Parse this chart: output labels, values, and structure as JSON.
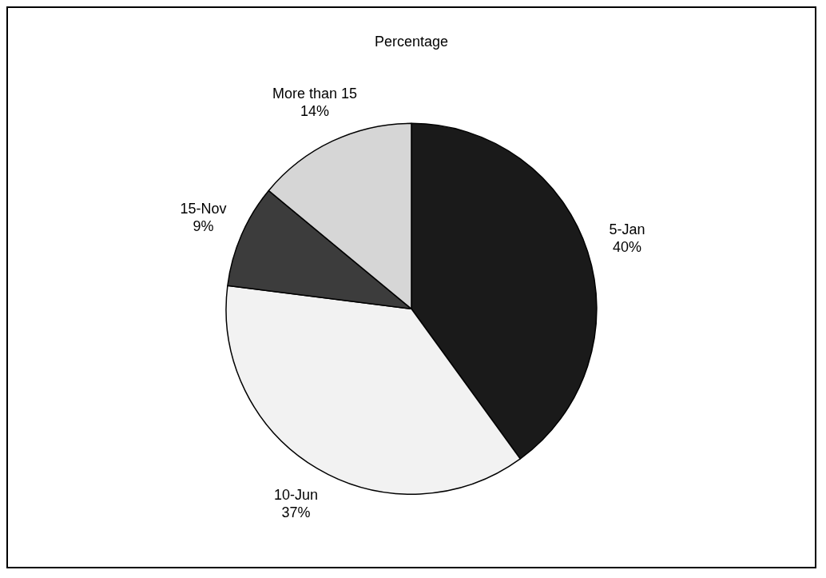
{
  "chart_data": {
    "type": "pie",
    "title": "Percentage",
    "categories": [
      "5-Jan",
      "10-Jun",
      "15-Nov",
      "More than 15"
    ],
    "values": [
      40,
      37,
      9,
      14
    ],
    "value_labels": [
      "40%",
      "37%",
      "9%",
      "14%"
    ],
    "colors": [
      "#1a1a1a",
      "#f2f2f2",
      "#3c3c3c",
      "#d6d6d6"
    ],
    "legend": false
  }
}
